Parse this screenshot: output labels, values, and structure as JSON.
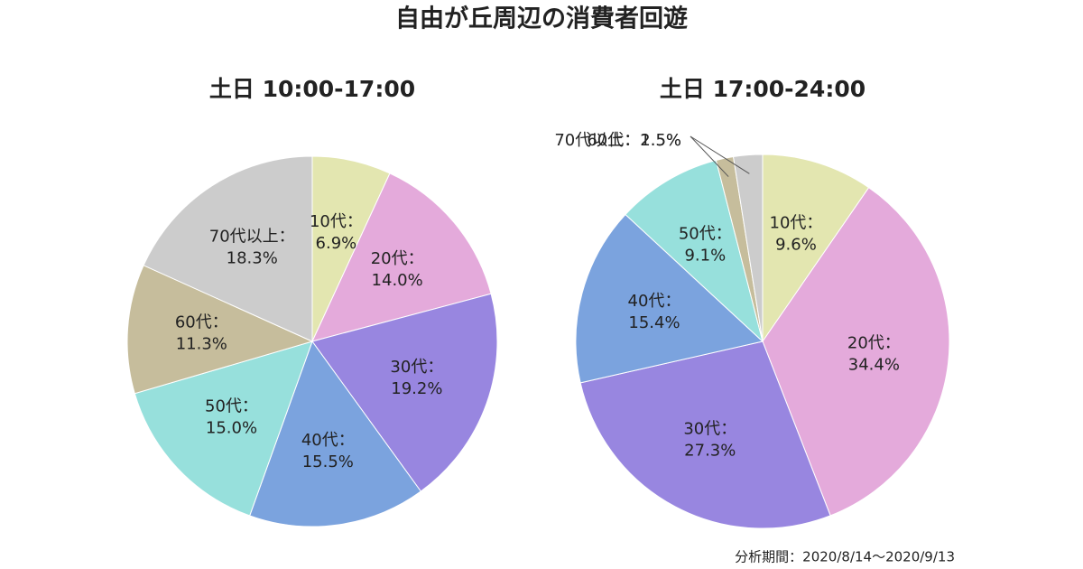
{
  "title": "自由が丘周辺の消費者回遊",
  "note": "分析期間：2020/8/14～2020/9/13",
  "chart_data": [
    {
      "type": "pie",
      "title": "土日 10:00-17:00",
      "categories": [
        "10代：",
        "20代：",
        "30代：",
        "40代：",
        "50代：",
        "60代：",
        "70代以上："
      ],
      "values": [
        6.9,
        14.0,
        19.2,
        15.5,
        15.0,
        11.3,
        18.3
      ],
      "value_labels": [
        "6.9%",
        "14.0%",
        "19.2%",
        "15.5%",
        "15.0%",
        "11.3%",
        "18.3%"
      ],
      "colors": [
        "#e3e6b0",
        "#e4aadb",
        "#9886e0",
        "#7ba3de",
        "#97e0dc",
        "#c6bd9c",
        "#cccccc"
      ]
    },
    {
      "type": "pie",
      "title": "土日 17:00-24:00",
      "categories": [
        "10代：",
        "20代：",
        "30代：",
        "40代：",
        "50代：",
        "60代：",
        "70代以上："
      ],
      "values": [
        9.6,
        34.4,
        27.3,
        15.4,
        9.1,
        1.5,
        2.5
      ],
      "value_labels": [
        "9.6%",
        "34.4%",
        "27.3%",
        "15.4%",
        "9.1%",
        "1.5%",
        "2.5%"
      ],
      "colors": [
        "#e3e6b0",
        "#e4aadb",
        "#9886e0",
        "#7ba3de",
        "#97e0dc",
        "#c6bd9c",
        "#cccccc"
      ]
    }
  ]
}
